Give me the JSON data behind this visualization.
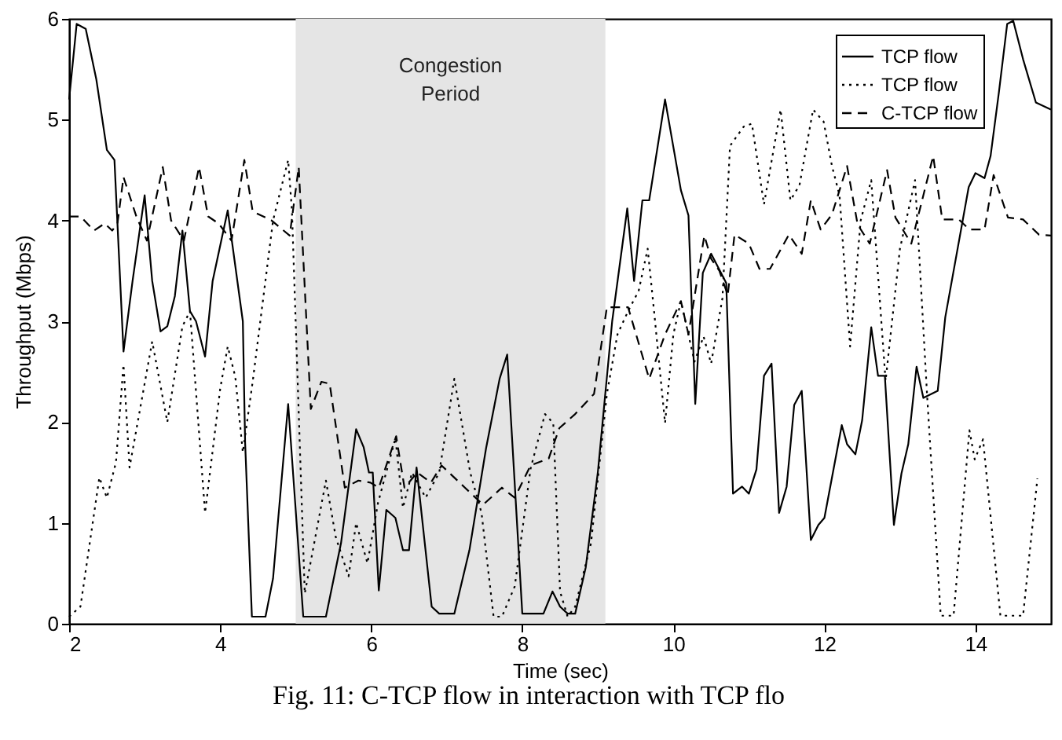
{
  "chart_data": {
    "type": "line",
    "xlabel": "Time (sec)",
    "ylabel": "Throughput (Mbps)",
    "xlim": [
      2,
      15
    ],
    "xticks": [
      2,
      4,
      6,
      8,
      10,
      12,
      14
    ],
    "ylim": [
      0,
      6
    ],
    "yticks": [
      0,
      1,
      2,
      3,
      4,
      5,
      6
    ],
    "grid": false,
    "legend": "top right",
    "marker": "none",
    "bands": [
      {
        "axis": "x",
        "from": 5.0,
        "to": 9.1,
        "label": "Congestion Period",
        "color": "#e5e5e5"
      }
    ],
    "annotations": [
      "Fig. 11: C-TCP flow in interaction with TCP flo"
    ],
    "series": [
      {
        "name": "TCP flow",
        "color": "#000000",
        "line_style": "solid",
        "x": [
          2.0,
          2.1,
          2.22,
          2.36,
          2.5,
          2.6,
          2.72,
          2.84,
          3.0,
          3.1,
          3.21,
          3.3,
          3.4,
          3.5,
          3.6,
          3.68,
          3.8,
          3.9,
          4.1,
          4.3,
          4.33,
          4.42,
          4.6,
          4.7,
          4.9,
          5.1,
          5.4,
          5.6,
          5.8,
          5.9,
          5.97,
          6.02,
          6.1,
          6.2,
          6.32,
          6.42,
          6.5,
          6.6,
          6.8,
          6.9,
          7.1,
          7.3,
          7.52,
          7.7,
          7.8,
          8.0,
          8.28,
          8.4,
          8.5,
          8.6,
          8.7,
          8.84,
          9.0,
          9.19,
          9.39,
          9.48,
          9.59,
          9.68,
          9.89,
          10.1,
          10.2,
          10.29,
          10.39,
          10.5,
          10.7,
          10.79,
          10.91,
          11.0,
          11.1,
          11.2,
          11.3,
          11.4,
          11.5,
          11.6,
          11.7,
          11.82,
          11.92,
          12.0,
          12.23,
          12.3,
          12.41,
          12.5,
          12.62,
          12.71,
          12.8,
          12.92,
          13.02,
          13.11,
          13.22,
          13.31,
          13.5,
          13.6,
          13.91,
          14.0,
          14.12,
          14.2,
          14.31,
          14.42,
          14.5,
          14.63,
          14.8,
          15.0
        ],
        "values": [
          5.2,
          5.95,
          5.9,
          5.4,
          4.7,
          4.6,
          2.7,
          3.4,
          4.25,
          3.4,
          2.9,
          2.95,
          3.25,
          3.9,
          3.1,
          3.0,
          2.65,
          3.4,
          4.1,
          3.0,
          1.8,
          0.07,
          0.07,
          0.45,
          2.18,
          0.07,
          0.07,
          0.8,
          1.93,
          1.75,
          1.5,
          1.5,
          0.33,
          1.13,
          1.05,
          0.73,
          0.73,
          1.55,
          0.17,
          0.1,
          0.1,
          0.73,
          1.74,
          2.43,
          2.67,
          0.1,
          0.1,
          0.32,
          0.17,
          0.1,
          0.1,
          0.56,
          1.5,
          3.0,
          4.12,
          3.4,
          4.2,
          4.2,
          5.2,
          4.3,
          4.05,
          2.18,
          3.48,
          3.67,
          3.38,
          1.29,
          1.36,
          1.29,
          1.53,
          2.46,
          2.58,
          1.1,
          1.36,
          2.17,
          2.31,
          0.83,
          0.98,
          1.05,
          1.97,
          1.78,
          1.68,
          2.02,
          2.94,
          2.46,
          2.46,
          0.98,
          1.49,
          1.78,
          2.55,
          2.24,
          2.31,
          3.04,
          4.33,
          4.47,
          4.42,
          4.64,
          5.27,
          5.95,
          5.98,
          5.6,
          5.17,
          5.1
        ]
      },
      {
        "name": "TCP flow",
        "color": "#000000",
        "line_style": "dotted",
        "x": [
          2.0,
          2.15,
          2.4,
          2.5,
          2.62,
          2.72,
          2.8,
          3.1,
          3.3,
          3.5,
          3.6,
          3.8,
          4.0,
          4.1,
          4.2,
          4.3,
          4.43,
          4.7,
          4.9,
          4.95,
          5.12,
          5.4,
          5.53,
          5.7,
          5.8,
          5.95,
          6.09,
          6.32,
          6.42,
          6.54,
          6.72,
          6.9,
          7.1,
          7.31,
          7.46,
          7.62,
          7.73,
          7.9,
          8.11,
          8.3,
          8.41,
          8.5,
          8.6,
          8.7,
          8.91,
          9.12,
          9.26,
          9.4,
          9.54,
          9.66,
          9.75,
          9.89,
          10.0,
          10.1,
          10.28,
          10.4,
          10.5,
          10.65,
          10.75,
          10.93,
          11.04,
          11.2,
          11.42,
          11.55,
          11.67,
          11.85,
          11.99,
          12.1,
          12.2,
          12.34,
          12.48,
          12.62,
          12.81,
          13.0,
          13.2,
          13.36,
          13.54,
          13.71,
          13.92,
          13.99,
          14.1,
          14.33,
          14.63,
          14.82
        ],
        "values": [
          0.07,
          0.17,
          1.45,
          1.25,
          1.6,
          2.57,
          1.55,
          2.8,
          2.0,
          2.95,
          3.1,
          1.1,
          2.33,
          2.75,
          2.45,
          1.7,
          2.4,
          4.0,
          4.6,
          4.1,
          0.3,
          1.42,
          0.86,
          0.47,
          1.0,
          0.6,
          1.2,
          1.84,
          1.15,
          1.5,
          1.25,
          1.5,
          2.43,
          1.5,
          1.1,
          0.07,
          0.07,
          0.37,
          1.54,
          2.08,
          1.99,
          0.32,
          0.07,
          0.17,
          0.8,
          2.28,
          2.87,
          3.1,
          3.3,
          3.72,
          3.06,
          1.99,
          2.87,
          3.2,
          2.6,
          2.85,
          2.58,
          3.23,
          4.74,
          4.93,
          4.96,
          4.16,
          5.1,
          4.2,
          4.35,
          5.1,
          4.98,
          4.54,
          4.25,
          2.75,
          4.0,
          4.4,
          2.41,
          3.72,
          4.4,
          2.26,
          0.08,
          0.08,
          1.92,
          1.63,
          1.83,
          0.08,
          0.08,
          1.44
        ]
      },
      {
        "name": "C-TCP flow",
        "color": "#000000",
        "line_style": "dashed",
        "x": [
          2.0,
          2.15,
          2.33,
          2.47,
          2.57,
          2.64,
          2.72,
          2.89,
          3.03,
          3.24,
          3.35,
          3.52,
          3.72,
          3.84,
          3.98,
          4.15,
          4.32,
          4.43,
          4.68,
          4.92,
          5.04,
          5.2,
          5.34,
          5.45,
          5.65,
          5.83,
          5.99,
          6.1,
          6.33,
          6.44,
          6.61,
          6.79,
          6.93,
          7.24,
          7.48,
          7.73,
          7.9,
          8.11,
          8.35,
          8.49,
          8.7,
          8.95,
          9.12,
          9.4,
          9.68,
          9.89,
          10.1,
          10.2,
          10.41,
          10.5,
          10.61,
          10.72,
          10.81,
          11.0,
          11.14,
          11.28,
          11.53,
          11.7,
          11.82,
          11.95,
          12.1,
          12.3,
          12.44,
          12.6,
          12.83,
          12.94,
          13.15,
          13.44,
          13.56,
          13.78,
          13.92,
          14.12,
          14.24,
          14.43,
          14.63,
          14.84,
          15.0
        ],
        "values": [
          4.04,
          4.04,
          3.9,
          3.97,
          3.9,
          3.97,
          4.43,
          4.04,
          3.8,
          4.53,
          4.0,
          3.8,
          4.53,
          4.04,
          3.97,
          3.8,
          4.6,
          4.09,
          4.0,
          3.85,
          4.53,
          2.13,
          2.4,
          2.38,
          1.35,
          1.42,
          1.4,
          1.35,
          1.86,
          1.35,
          1.5,
          1.4,
          1.57,
          1.35,
          1.18,
          1.35,
          1.25,
          1.57,
          1.64,
          1.94,
          2.08,
          2.28,
          3.14,
          3.14,
          2.43,
          2.87,
          3.2,
          2.87,
          3.85,
          3.62,
          3.5,
          3.26,
          3.86,
          3.77,
          3.52,
          3.52,
          3.86,
          3.67,
          4.2,
          3.91,
          4.06,
          4.54,
          3.96,
          3.77,
          4.5,
          4.03,
          3.77,
          4.64,
          4.01,
          4.01,
          3.91,
          3.91,
          4.45,
          4.03,
          4.01,
          3.86,
          3.85
        ]
      }
    ]
  }
}
